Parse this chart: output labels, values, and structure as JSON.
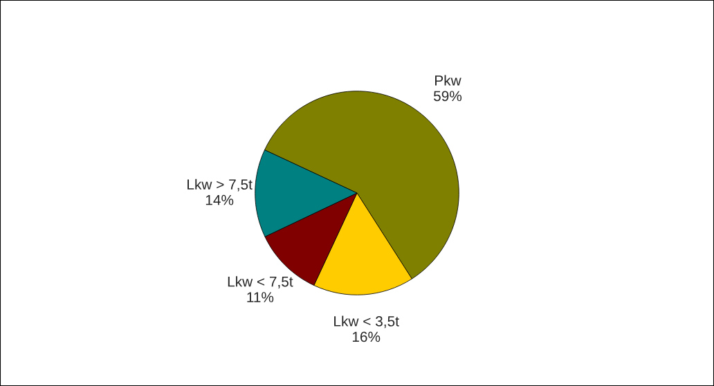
{
  "chart_data": {
    "type": "pie",
    "categories": [
      "Pkw",
      "Lkw < 3,5t",
      "Lkw < 7,5t",
      "Lkw > 7,5t"
    ],
    "values": [
      59,
      16,
      11,
      14
    ],
    "value_labels": [
      "59%",
      "16%",
      "11%",
      "14%"
    ],
    "colors": [
      "#808000",
      "#ffcc00",
      "#800000",
      "#008080"
    ]
  }
}
